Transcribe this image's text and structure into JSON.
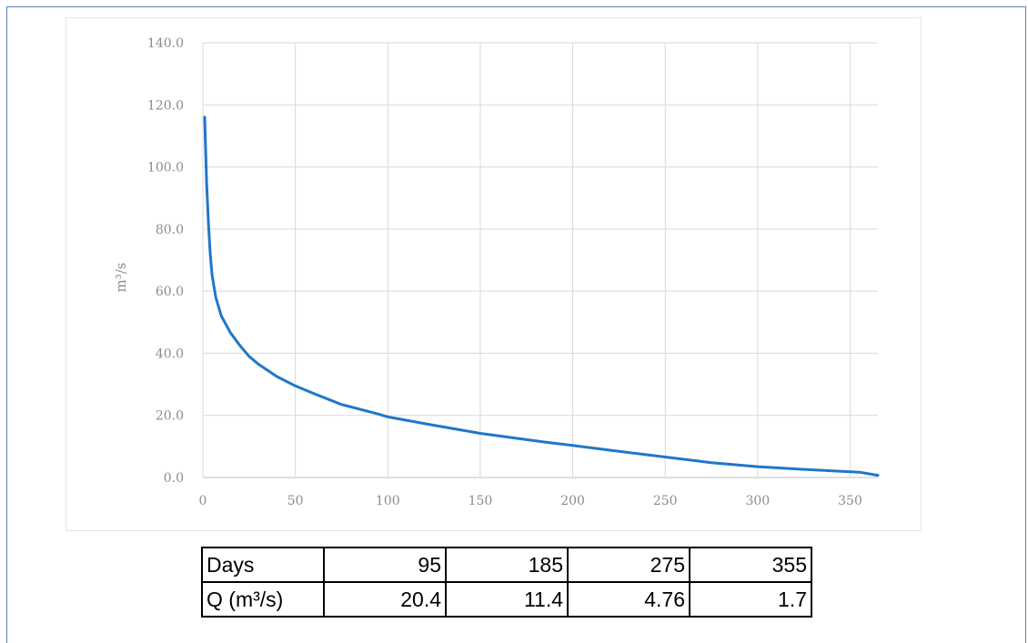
{
  "chart_data": {
    "type": "line",
    "title": "",
    "xlabel": "",
    "ylabel": "m³/s",
    "xlim": [
      0,
      365
    ],
    "ylim": [
      0,
      140
    ],
    "xticks": [
      0,
      50,
      100,
      150,
      200,
      250,
      300,
      350
    ],
    "yticks": [
      "0.0",
      "20.0",
      "40.0",
      "60.0",
      "80.0",
      "100.0",
      "120.0",
      "140.0"
    ],
    "grid": true,
    "legend": "none",
    "series": [
      {
        "color": "#1f77c8",
        "x": [
          1,
          2,
          3,
          4,
          5,
          7,
          10,
          15,
          20,
          25,
          30,
          40,
          50,
          60,
          75,
          95,
          100,
          125,
          150,
          185,
          200,
          225,
          250,
          275,
          300,
          325,
          355,
          365
        ],
        "y": [
          116,
          95,
          82,
          72,
          65,
          58,
          52,
          46.5,
          42.5,
          39,
          36.5,
          32.5,
          29.5,
          27,
          23.5,
          20.4,
          19.5,
          16.8,
          14.2,
          11.4,
          10.3,
          8.4,
          6.6,
          4.76,
          3.5,
          2.6,
          1.7,
          0.7
        ]
      }
    ]
  },
  "table": {
    "rows": [
      {
        "label": "Days",
        "values": [
          "95",
          "185",
          "275",
          "355"
        ]
      },
      {
        "label": "Q (m³/s)",
        "values": [
          "20.4",
          "11.4",
          "4.76",
          "1.7"
        ]
      }
    ]
  }
}
